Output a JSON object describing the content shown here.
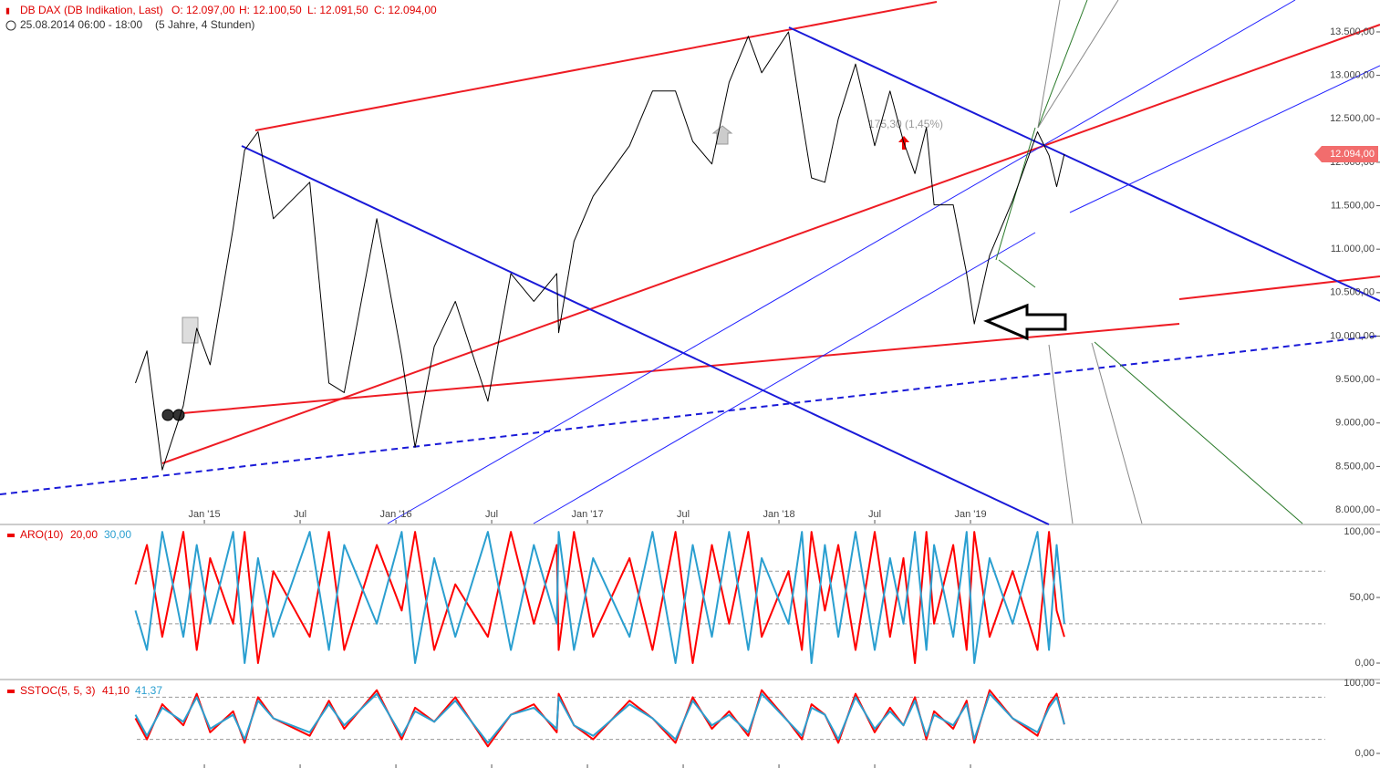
{
  "chart_data": [
    {
      "type": "line",
      "title": "DB DAX (DB Indikation, Last)",
      "ohlc": [
        "O: 12.097,00",
        "H: 12.100,50",
        "L: 12.091,50",
        "C: 12.094,00"
      ],
      "subtitle": "25.08.2014 06:00 - 18:00",
      "period": "(5 Jahre, 4 Stunden)",
      "annotation": "175,30 (1,45%)",
      "last_price": {
        "value": 12094,
        "label": "12.094,00"
      },
      "color": "#000000",
      "x": [
        2014.64,
        2014.7,
        2014.78,
        2014.89,
        2014.96,
        2015.03,
        2015.15,
        2015.21,
        2015.28,
        2015.36,
        2015.55,
        2015.65,
        2015.73,
        2015.9,
        2016.03,
        2016.1,
        2016.2,
        2016.31,
        2016.48,
        2016.6,
        2016.72,
        2016.84,
        2016.85,
        2016.93,
        2017.03,
        2017.22,
        2017.34,
        2017.46,
        2017.55,
        2017.65,
        2017.74,
        2017.84,
        2017.91,
        2018.05,
        2018.12,
        2018.17,
        2018.24,
        2018.31,
        2018.4,
        2018.5,
        2018.58,
        2018.65,
        2018.71,
        2018.77,
        2018.81,
        2018.91,
        2018.98,
        2019.02,
        2019.1,
        2019.22,
        2019.35,
        2019.41,
        2019.45,
        2019.49
      ],
      "values": [
        9460,
        9830,
        8460,
        9200,
        10090,
        9670,
        11240,
        12140,
        12350,
        11350,
        11770,
        9460,
        9350,
        11350,
        9770,
        8720,
        9880,
        10400,
        9250,
        10720,
        10400,
        10720,
        10040,
        11090,
        11610,
        12190,
        12820,
        12820,
        12240,
        11980,
        12920,
        13450,
        13030,
        13500,
        12500,
        11820,
        11770,
        12500,
        13130,
        12190,
        12820,
        12240,
        11870,
        12400,
        11510,
        11510,
        10720,
        10140,
        10930,
        11560,
        12350,
        12080,
        11720,
        12094
      ],
      "xlim": [
        2013.933,
        2021.138
      ],
      "xticks": [
        {
          "value": 2015,
          "label": "Jan '15"
        },
        {
          "value": 2015.5,
          "label": "Jul"
        },
        {
          "value": 2016,
          "label": "Jan '16"
        },
        {
          "value": 2016.5,
          "label": "Jul"
        },
        {
          "value": 2017,
          "label": "Jan '17"
        },
        {
          "value": 2017.5,
          "label": "Jul"
        },
        {
          "value": 2018,
          "label": "Jan '18"
        },
        {
          "value": 2018.5,
          "label": "Jul"
        },
        {
          "value": 2019,
          "label": "Jan '19"
        }
      ],
      "ylim": [
        7843,
        13867
      ],
      "yticks": [
        {
          "value": 8000,
          "label": "8.000,00"
        },
        {
          "value": 8500,
          "label": "8.500,00"
        },
        {
          "value": 9000,
          "label": "9.000,00"
        },
        {
          "value": 9500,
          "label": "9.500,00"
        },
        {
          "value": 10000,
          "label": "10.000,00"
        },
        {
          "value": 10500,
          "label": "10.500,00"
        },
        {
          "value": 11000,
          "label": "11.000,00"
        },
        {
          "value": 11500,
          "label": "11.500,00"
        },
        {
          "value": 12000,
          "label": "12.000,00"
        },
        {
          "value": 12500,
          "label": "12.500,00"
        },
        {
          "value": 13000,
          "label": "13.000,00"
        },
        {
          "value": 13500,
          "label": "13.500,00"
        }
      ]
    },
    {
      "type": "line",
      "title": "ARO(10)",
      "x": [
        2014.64,
        2014.7,
        2014.78,
        2014.89,
        2014.96,
        2015.03,
        2015.15,
        2015.21,
        2015.28,
        2015.36,
        2015.55,
        2015.65,
        2015.73,
        2015.9,
        2016.03,
        2016.1,
        2016.2,
        2016.31,
        2016.48,
        2016.6,
        2016.72,
        2016.84,
        2016.85,
        2016.93,
        2017.03,
        2017.22,
        2017.34,
        2017.46,
        2017.55,
        2017.65,
        2017.74,
        2017.84,
        2017.91,
        2018.05,
        2018.12,
        2018.17,
        2018.24,
        2018.31,
        2018.4,
        2018.5,
        2018.58,
        2018.65,
        2018.71,
        2018.77,
        2018.81,
        2018.91,
        2018.98,
        2019.02,
        2019.1,
        2019.22,
        2019.35,
        2019.41,
        2019.45,
        2019.49
      ],
      "series": [
        {
          "color": "#ff0000",
          "last_label": "20,00",
          "values": [
            60,
            90,
            20,
            100,
            10,
            80,
            30,
            100,
            0,
            70,
            20,
            100,
            10,
            90,
            40,
            100,
            10,
            60,
            20,
            100,
            30,
            90,
            10,
            100,
            20,
            80,
            10,
            100,
            0,
            90,
            30,
            100,
            20,
            70,
            10,
            100,
            40,
            90,
            10,
            100,
            20,
            80,
            0,
            100,
            30,
            90,
            10,
            100,
            20,
            70,
            10,
            100,
            40,
            20
          ]
        },
        {
          "color": "#2a9fd0",
          "last_label": "30,00",
          "values": [
            40,
            10,
            100,
            20,
            90,
            30,
            100,
            0,
            80,
            20,
            100,
            10,
            90,
            30,
            100,
            0,
            80,
            20,
            100,
            10,
            90,
            30,
            100,
            10,
            80,
            20,
            100,
            0,
            90,
            20,
            100,
            10,
            80,
            30,
            100,
            0,
            90,
            20,
            100,
            10,
            80,
            30,
            100,
            10,
            90,
            20,
            100,
            0,
            80,
            30,
            100,
            10,
            90,
            30
          ]
        }
      ],
      "xlim": [
        2013.933,
        2021.138
      ],
      "ylim": [
        -12.5,
        105.6
      ],
      "yticks": [
        {
          "value": 0,
          "label": "0,00"
        },
        {
          "value": 50,
          "label": "50,00"
        },
        {
          "value": 100,
          "label": "100,00"
        }
      ],
      "levels": [
        30,
        70
      ]
    },
    {
      "type": "line",
      "title": "SSTOC(5, 5, 3)",
      "x": [
        2014.64,
        2014.7,
        2014.78,
        2014.89,
        2014.96,
        2015.03,
        2015.15,
        2015.21,
        2015.28,
        2015.36,
        2015.55,
        2015.65,
        2015.73,
        2015.9,
        2016.03,
        2016.1,
        2016.2,
        2016.31,
        2016.48,
        2016.6,
        2016.72,
        2016.84,
        2016.85,
        2016.93,
        2017.03,
        2017.22,
        2017.34,
        2017.46,
        2017.55,
        2017.65,
        2017.74,
        2017.84,
        2017.91,
        2018.05,
        2018.12,
        2018.17,
        2018.24,
        2018.31,
        2018.4,
        2018.5,
        2018.58,
        2018.65,
        2018.71,
        2018.77,
        2018.81,
        2018.91,
        2018.98,
        2019.02,
        2019.1,
        2019.22,
        2019.35,
        2019.41,
        2019.45,
        2019.49
      ],
      "series": [
        {
          "color": "#ff0000",
          "last_label": "41,10",
          "values": [
            50,
            20,
            70,
            40,
            85,
            30,
            60,
            15,
            80,
            50,
            25,
            75,
            35,
            90,
            20,
            65,
            45,
            80,
            10,
            55,
            70,
            30,
            85,
            40,
            20,
            75,
            50,
            15,
            80,
            35,
            60,
            25,
            90,
            45,
            20,
            70,
            55,
            15,
            85,
            30,
            65,
            40,
            80,
            20,
            60,
            35,
            75,
            15,
            90,
            50,
            25,
            70,
            85,
            41.1
          ]
        },
        {
          "color": "#2a9fd0",
          "last_label": "41,37",
          "values": [
            55,
            25,
            65,
            45,
            80,
            35,
            55,
            20,
            75,
            50,
            30,
            70,
            40,
            85,
            25,
            60,
            45,
            75,
            15,
            55,
            65,
            35,
            80,
            40,
            25,
            70,
            50,
            20,
            75,
            40,
            55,
            30,
            85,
            45,
            25,
            65,
            55,
            20,
            80,
            35,
            60,
            40,
            75,
            25,
            55,
            40,
            70,
            20,
            85,
            50,
            30,
            65,
            80,
            41.37
          ]
        }
      ],
      "xlim": [
        2013.933,
        2021.138
      ],
      "ylim": [
        -20.8,
        105.2
      ],
      "yticks": [
        {
          "value": 0,
          "label": "0,00"
        },
        {
          "value": 100,
          "label": "100,00"
        }
      ],
      "levels": [
        20,
        80
      ]
    }
  ]
}
